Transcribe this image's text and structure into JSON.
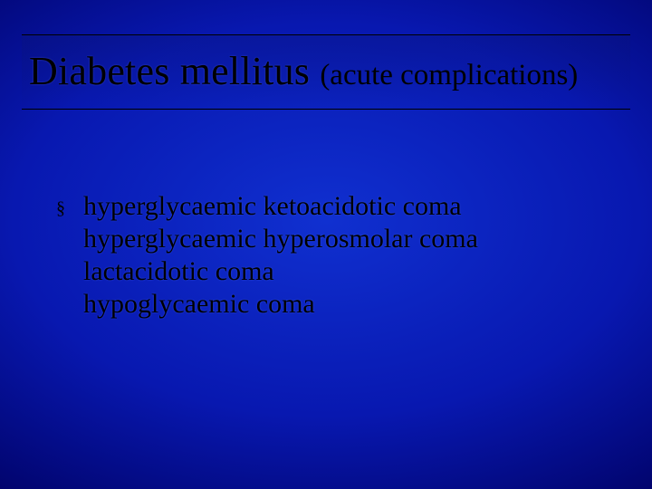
{
  "slide": {
    "background": {
      "gradient_center": "#1030d0",
      "gradient_mid": "#0818b0",
      "gradient_outer": "#000060",
      "gradient_corner": "#000030"
    },
    "title": {
      "main": "Diabetes mellitus ",
      "sub": "(acute complications)",
      "main_fontsize": 44,
      "sub_fontsize": 33,
      "color": "#000000",
      "border_color": "#000000"
    },
    "bullet": {
      "marker": "§",
      "marker_color": "#000000",
      "text_color": "#000000",
      "fontsize": 30,
      "lines": [
        "hyperglycaemic ketoacidotic coma",
        "hyperglycaemic hyperosmolar coma",
        "lactacidotic coma",
        "hypoglycaemic coma"
      ]
    }
  }
}
